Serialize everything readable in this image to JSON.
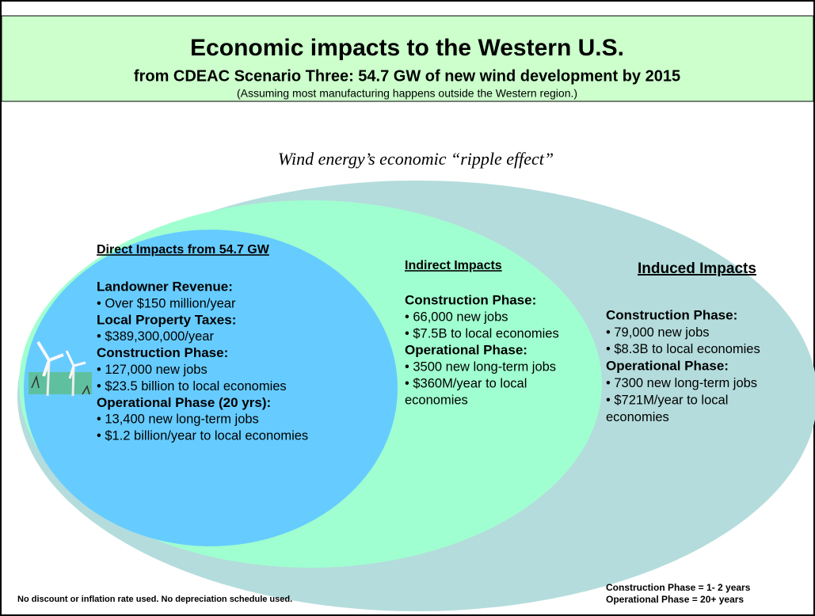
{
  "header": {
    "title": "Economic impacts to the Western U.S.",
    "subtitle": "from CDEAC Scenario Three: 54.7 GW of new wind development by 2015",
    "note": "(Assuming most manufacturing happens outside the Western region.)"
  },
  "ripple_label": "Wind energy’s economic “ripple effect”",
  "direct": {
    "heading": "Direct Impacts from 54.7 GW",
    "groups": [
      {
        "label": "Landowner Revenue:",
        "items": [
          "• Over $150 million/year"
        ]
      },
      {
        "label": "Local Property Taxes:",
        "items": [
          "• $389,300,000/year"
        ]
      },
      {
        "label": "Construction Phase:",
        "items": [
          "• 127,000 new jobs",
          "• $23.5 billion to local economies"
        ]
      },
      {
        "label": "Operational Phase (20 yrs):",
        "items": [
          "• 13,400 new long-term jobs",
          "• $1.2 billion/year to local economies"
        ]
      }
    ]
  },
  "indirect": {
    "heading": "Indirect Impacts",
    "groups": [
      {
        "label": "Construction Phase:",
        "items": [
          "• 66,000 new jobs",
          "• $7.5B to local economies"
        ]
      },
      {
        "label": "Operational Phase:",
        "items": [
          "• 3500 new long-term jobs",
          "• $360M/year to local",
          "economies"
        ]
      }
    ]
  },
  "induced": {
    "heading": "Induced Impacts",
    "groups": [
      {
        "label": "Construction Phase:",
        "items": [
          "• 79,000 new jobs",
          "• $8.3B to local economies"
        ]
      },
      {
        "label": "Operational Phase:",
        "items": [
          "• 7300 new long-term jobs",
          "• $721M/year to local",
          "economies"
        ]
      }
    ]
  },
  "footer": {
    "left": "No discount or inflation rate used. No depreciation schedule used.",
    "right": [
      "Construction Phase = 1- 2 years",
      "Operational Phase = 20+ years"
    ]
  }
}
